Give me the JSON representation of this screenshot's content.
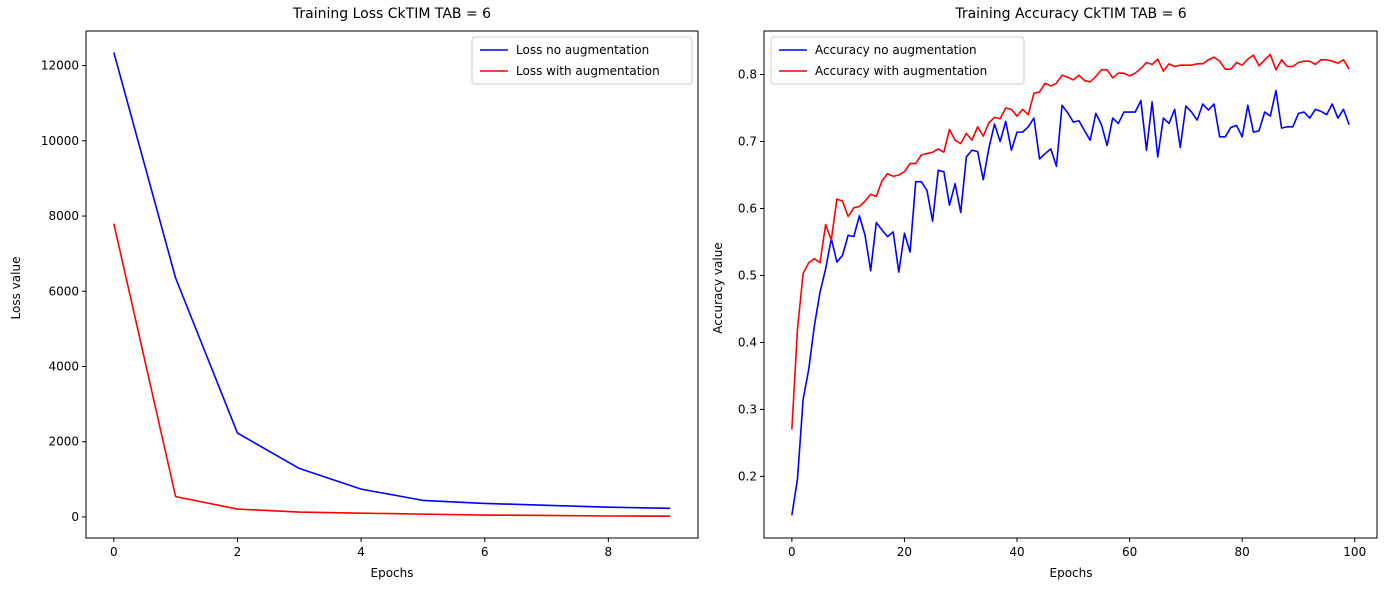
{
  "chart_data": [
    {
      "type": "line",
      "title": "Training Loss CkTIM TAB = 6",
      "xlabel": "Epochs",
      "ylabel": "Loss value",
      "xlim": [
        -0.45,
        9.45
      ],
      "ylim": [
        -560,
        12920
      ],
      "xticks": [
        0,
        2,
        4,
        6,
        8
      ],
      "yticks": [
        0,
        2000,
        4000,
        6000,
        8000,
        10000,
        12000
      ],
      "grid": false,
      "legend_position": "top-right",
      "series": [
        {
          "name": "Loss no augmentation",
          "color": "#0000ff",
          "x": [
            0,
            1,
            2,
            3,
            4,
            5,
            6,
            7,
            8,
            9
          ],
          "y": [
            12350,
            6350,
            2230,
            1290,
            740,
            440,
            360,
            310,
            260,
            230
          ]
        },
        {
          "name": "Loss with augmentation",
          "color": "#ff0000",
          "x": [
            0,
            1,
            2,
            3,
            4,
            5,
            6,
            7,
            8,
            9
          ],
          "y": [
            7800,
            540,
            210,
            130,
            100,
            75,
            50,
            40,
            25,
            20
          ]
        }
      ]
    },
    {
      "type": "line",
      "title": "Training Accuracy CkTIM TAB = 6",
      "xlabel": "Epochs",
      "ylabel": "Accuracy value",
      "xlim": [
        -4.95,
        103.95
      ],
      "ylim": [
        0.108,
        0.865
      ],
      "xticks": [
        0,
        20,
        40,
        60,
        80,
        100
      ],
      "yticks": [
        0.2,
        0.3,
        0.4,
        0.5,
        0.6,
        0.7,
        0.8
      ],
      "grid": false,
      "legend_position": "top-left",
      "series": [
        {
          "name": "Accuracy no augmentation",
          "color": "#0000ff",
          "y": [
            0.142,
            0.196,
            0.315,
            0.36,
            0.425,
            0.475,
            0.51,
            0.555,
            0.52,
            0.53,
            0.56,
            0.558,
            0.589,
            0.56,
            0.507,
            0.579,
            0.568,
            0.558,
            0.565,
            0.505,
            0.563,
            0.535,
            0.64,
            0.64,
            0.627,
            0.581,
            0.657,
            0.655,
            0.605,
            0.637,
            0.594,
            0.677,
            0.687,
            0.685,
            0.643,
            0.69,
            0.726,
            0.7,
            0.73,
            0.687,
            0.714,
            0.714,
            0.722,
            0.735,
            0.674,
            0.682,
            0.689,
            0.663,
            0.754,
            0.743,
            0.729,
            0.731,
            0.716,
            0.702,
            0.742,
            0.725,
            0.694,
            0.735,
            0.727,
            0.744,
            0.744,
            0.744,
            0.761,
            0.687,
            0.759,
            0.677,
            0.735,
            0.727,
            0.748,
            0.691,
            0.753,
            0.744,
            0.732,
            0.756,
            0.747,
            0.756,
            0.707,
            0.707,
            0.721,
            0.724,
            0.707,
            0.754,
            0.714,
            0.716,
            0.744,
            0.738,
            0.776,
            0.72,
            0.722,
            0.722,
            0.742,
            0.744,
            0.735,
            0.748,
            0.745,
            0.74,
            0.756,
            0.735,
            0.748,
            0.725
          ]
        },
        {
          "name": "Accuracy with augmentation",
          "color": "#ff0000",
          "y": [
            0.27,
            0.42,
            0.503,
            0.519,
            0.525,
            0.519,
            0.576,
            0.553,
            0.614,
            0.611,
            0.588,
            0.601,
            0.603,
            0.611,
            0.621,
            0.618,
            0.641,
            0.652,
            0.648,
            0.65,
            0.655,
            0.667,
            0.667,
            0.68,
            0.682,
            0.684,
            0.689,
            0.684,
            0.718,
            0.702,
            0.697,
            0.712,
            0.702,
            0.722,
            0.708,
            0.728,
            0.736,
            0.734,
            0.75,
            0.748,
            0.738,
            0.748,
            0.74,
            0.772,
            0.774,
            0.787,
            0.783,
            0.787,
            0.799,
            0.796,
            0.792,
            0.799,
            0.791,
            0.789,
            0.797,
            0.807,
            0.807,
            0.795,
            0.802,
            0.802,
            0.798,
            0.802,
            0.809,
            0.818,
            0.815,
            0.823,
            0.805,
            0.816,
            0.812,
            0.814,
            0.814,
            0.814,
            0.816,
            0.816,
            0.822,
            0.826,
            0.82,
            0.808,
            0.808,
            0.818,
            0.814,
            0.823,
            0.829,
            0.813,
            0.822,
            0.83,
            0.807,
            0.822,
            0.812,
            0.812,
            0.818,
            0.82,
            0.82,
            0.815,
            0.822,
            0.822,
            0.82,
            0.817,
            0.822,
            0.808
          ]
        }
      ]
    }
  ]
}
